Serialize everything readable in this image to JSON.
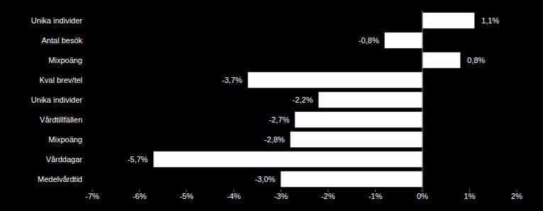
{
  "chart_data": {
    "type": "bar",
    "orientation": "horizontal",
    "categories": [
      "Unika individer",
      "Antal besök",
      "Mixpoäng",
      "Kval brev/tel",
      "Unika individer",
      "Vårdtillfällen",
      "Mixpoäng",
      "Vårddagar",
      "Medelvårdtid"
    ],
    "values": [
      1.1,
      -0.8,
      0.8,
      -3.7,
      -2.2,
      -2.7,
      -2.8,
      -5.7,
      -3.0
    ],
    "value_labels": [
      "1,1%",
      "-0,8%",
      "0,8%",
      "-3,7%",
      "-2,2%",
      "-2,7%",
      "-2,8%",
      "-5,7%",
      "-3,0%"
    ],
    "color": "#ffffff",
    "data_labels": true,
    "xlim": [
      -7,
      2
    ],
    "xticks": [
      {
        "value": -7,
        "label": "-7%"
      },
      {
        "value": -6,
        "label": "-6%"
      },
      {
        "value": -5,
        "label": "-5%"
      },
      {
        "value": -4,
        "label": "-4%"
      },
      {
        "value": -3,
        "label": "-3%"
      },
      {
        "value": -2,
        "label": "-2%"
      },
      {
        "value": -1,
        "label": "-1%"
      },
      {
        "value": 0,
        "label": "0%"
      },
      {
        "value": 1,
        "label": "1%"
      },
      {
        "value": 2,
        "label": "2%"
      }
    ],
    "grid": false
  }
}
